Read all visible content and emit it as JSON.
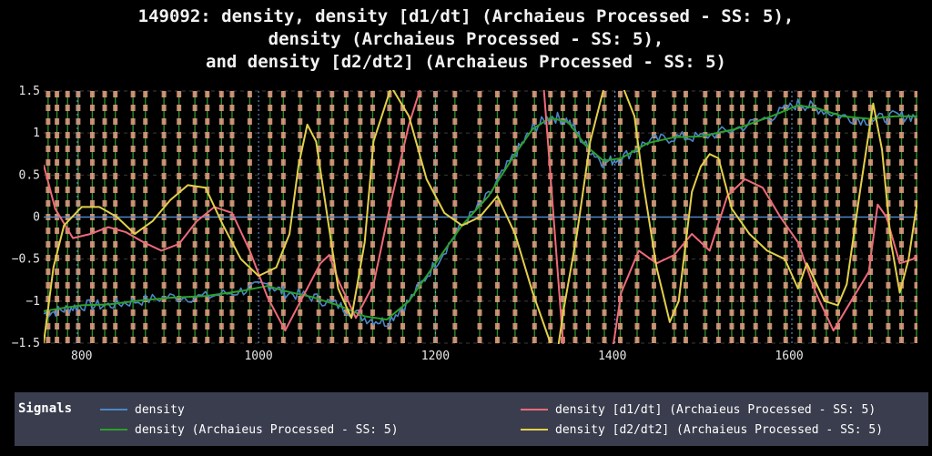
{
  "chart_data": {
    "type": "line",
    "title_lines": [
      "149092: density, density [d1/dt] (Archaieus Processed - SS: 5),",
      "density (Archaieus Processed - SS: 5),",
      "and density [d2/dt2] (Archaieus Processed - SS: 5)"
    ],
    "xlim": [
      757,
      1745
    ],
    "ylim": [
      -1.5,
      1.5
    ],
    "x_ticks": [
      800,
      1000,
      1200,
      1400,
      1600
    ],
    "y_ticks": [
      1.5,
      1,
      0.5,
      0,
      -0.5,
      -1,
      -1.5
    ],
    "y_tick_labels": [
      "1.5",
      "1",
      "0.5",
      "0",
      "−0.5",
      "−1",
      "−1.5"
    ],
    "grid": true,
    "legend_title": "Signals",
    "legend_position": "bottom",
    "colors": {
      "density": "#4c86c6",
      "density_d1": "#ef6a7a",
      "density_ss5": "#2ca02c",
      "density_d2": "#e3cf4a",
      "zero_line": "#4c86c6",
      "events": "#e8a184",
      "event_green": "#2e8b2e",
      "vlines": "#6fa0e0"
    },
    "blue_vlines": [
      795,
      1000,
      1200,
      1403,
      1603
    ],
    "event_markers": [
      762,
      772,
      784,
      796,
      812,
      826,
      838,
      858,
      872,
      893,
      910,
      928,
      942,
      958,
      970,
      990,
      1013,
      1028,
      1047,
      1068,
      1083,
      1099,
      1115,
      1129,
      1148,
      1163,
      1182,
      1200,
      1222,
      1250,
      1270,
      1290,
      1312,
      1330,
      1344,
      1358,
      1373,
      1391,
      1409,
      1428,
      1447,
      1470,
      1483,
      1505,
      1520,
      1535,
      1547,
      1562,
      1578,
      1596,
      1612,
      1628,
      1642,
      1655,
      1674,
      1692,
      1712,
      1727,
      1744
    ],
    "series": [
      {
        "name": "density",
        "key": "density",
        "x": [
          757,
          780,
          800,
          830,
          860,
          900,
          940,
          980,
          1010,
          1030,
          1060,
          1090,
          1120,
          1145,
          1170,
          1200,
          1230,
          1260,
          1290,
          1310,
          1330,
          1350,
          1370,
          1390,
          1410,
          1440,
          1470,
          1500,
          1540,
          1580,
          1610,
          1630,
          1660,
          1690,
          1720,
          1745
        ],
        "y": [
          -1.15,
          -1.1,
          -1.05,
          -1.05,
          -1.0,
          -0.95,
          -0.95,
          -0.88,
          -0.8,
          -0.9,
          -0.95,
          -1.05,
          -1.2,
          -1.25,
          -1.0,
          -0.55,
          -0.1,
          0.25,
          0.75,
          1.05,
          1.2,
          1.15,
          0.85,
          0.65,
          0.7,
          0.9,
          0.95,
          0.95,
          1.05,
          1.2,
          1.35,
          1.3,
          1.2,
          1.15,
          1.2,
          1.2
        ]
      },
      {
        "name": "density (Archaieus Processed - SS: 5)",
        "key": "density_ss5",
        "x": [
          757,
          780,
          800,
          830,
          860,
          900,
          940,
          980,
          1010,
          1030,
          1060,
          1090,
          1120,
          1145,
          1170,
          1200,
          1230,
          1260,
          1290,
          1310,
          1330,
          1350,
          1370,
          1390,
          1410,
          1440,
          1470,
          1500,
          1540,
          1580,
          1610,
          1630,
          1660,
          1690,
          1720,
          1745
        ],
        "y": [
          -1.12,
          -1.08,
          -1.05,
          -1.04,
          -1.0,
          -0.96,
          -0.94,
          -0.88,
          -0.82,
          -0.88,
          -0.95,
          -1.05,
          -1.18,
          -1.22,
          -1.0,
          -0.55,
          -0.1,
          0.25,
          0.75,
          1.05,
          1.18,
          1.13,
          0.85,
          0.67,
          0.7,
          0.88,
          0.95,
          0.96,
          1.05,
          1.2,
          1.33,
          1.3,
          1.2,
          1.17,
          1.2,
          1.2
        ]
      },
      {
        "name": "density [d1/dt] (Archaieus Processed - SS: 5)",
        "key": "density_d1",
        "x": [
          757,
          770,
          790,
          810,
          830,
          850,
          870,
          890,
          910,
          930,
          950,
          970,
          990,
          1010,
          1030,
          1050,
          1070,
          1080,
          1090,
          1110,
          1130,
          1150,
          1170,
          1185
        ],
        "y": [
          0.62,
          0.1,
          -0.25,
          -0.2,
          -0.12,
          -0.18,
          -0.3,
          -0.4,
          -0.32,
          -0.05,
          0.12,
          0.05,
          -0.4,
          -0.95,
          -1.35,
          -0.95,
          -0.55,
          -0.45,
          -0.75,
          -1.2,
          -0.8,
          0.2,
          1.1,
          1.6
        ],
        "x2": [
          1322,
          1330,
          1345,
          1360,
          1380,
          1392,
          1400,
          1410,
          1430,
          1450,
          1470,
          1490,
          1510,
          1530,
          1550,
          1570,
          1590,
          1610,
          1630,
          1650,
          1670,
          1690,
          1700,
          1710,
          1725,
          1740,
          1745
        ],
        "y2": [
          1.6,
          0.5,
          -1.6,
          -1.6,
          -1.6,
          -1.6,
          -1.6,
          -0.9,
          -0.4,
          -0.55,
          -0.45,
          -0.2,
          -0.4,
          0.25,
          0.45,
          0.35,
          0.0,
          -0.3,
          -0.9,
          -1.35,
          -1.0,
          -0.65,
          0.15,
          0.0,
          -0.55,
          -0.5,
          -0.45
        ]
      },
      {
        "name": "density [d2/dt2] (Archaieus Processed - SS: 5)",
        "key": "density_d2",
        "x": [
          757,
          768,
          780,
          800,
          820,
          840,
          860,
          880,
          900,
          920,
          940,
          960,
          980,
          1000,
          1020,
          1035,
          1045,
          1055,
          1065,
          1075,
          1090,
          1105,
          1120,
          1130,
          1150,
          1170,
          1190,
          1210,
          1230,
          1250,
          1270,
          1290,
          1310,
          1330
        ],
        "y": [
          -1.5,
          -0.6,
          -0.1,
          0.12,
          0.12,
          0.0,
          -0.2,
          -0.05,
          0.2,
          0.38,
          0.35,
          -0.1,
          -0.5,
          -0.7,
          -0.6,
          -0.2,
          0.6,
          1.1,
          0.9,
          0.2,
          -0.85,
          -1.2,
          -0.3,
          0.9,
          1.55,
          1.2,
          0.45,
          0.05,
          -0.1,
          0.0,
          0.25,
          -0.2,
          -0.9,
          -1.5
        ],
        "x2": [
          1338,
          1345,
          1360,
          1375,
          1392,
          1410,
          1425,
          1435,
          1450,
          1465,
          1475,
          1490,
          1500,
          1510,
          1520,
          1535,
          1555,
          1575,
          1595,
          1610,
          1620,
          1640,
          1655,
          1665,
          1680,
          1695,
          1705,
          1715,
          1725,
          1735,
          1745
        ],
        "y2": [
          -1.6,
          -1.1,
          -0.2,
          0.9,
          1.6,
          1.6,
          1.2,
          0.4,
          -0.6,
          -1.25,
          -1.0,
          0.3,
          0.6,
          0.75,
          0.7,
          0.1,
          -0.2,
          -0.4,
          -0.5,
          -0.85,
          -0.55,
          -1.0,
          -1.05,
          -0.8,
          0.3,
          1.35,
          0.8,
          -0.3,
          -0.9,
          -0.5,
          0.2
        ]
      }
    ]
  },
  "legend": {
    "title": "Signals",
    "items": [
      "density",
      "density (Archaieus Processed - SS: 5)",
      "density [d1/dt] (Archaieus Processed - SS: 5)",
      "density [d2/dt2] (Archaieus Processed - SS: 5)"
    ]
  }
}
